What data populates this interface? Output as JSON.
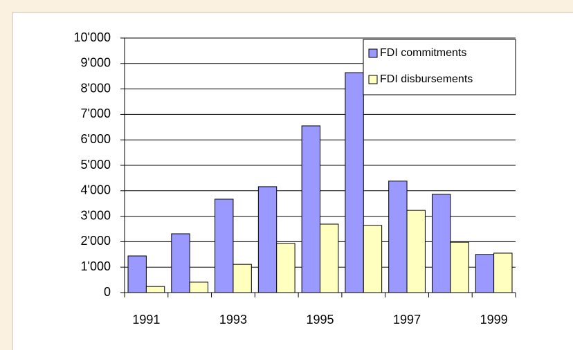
{
  "chart_data": {
    "type": "bar",
    "categories": [
      "1991",
      null,
      "1993",
      null,
      "1995",
      null,
      "1997",
      null,
      "1999"
    ],
    "series": [
      {
        "name": "FDI commitments",
        "color": "#9999ff",
        "values": [
          1440,
          2310,
          3670,
          4160,
          6550,
          8640,
          4380,
          3860,
          1500
        ]
      },
      {
        "name": "FDI disbursements",
        "color": "#ffffc0",
        "values": [
          240,
          410,
          1110,
          1930,
          2690,
          2640,
          3230,
          1980,
          1550
        ]
      }
    ],
    "ylim": [
      0,
      10000
    ],
    "yticks": [
      0,
      {
        "value": 1000,
        "label": "1'000"
      },
      {
        "value": 2000,
        "label": "2'000"
      },
      {
        "value": 3000,
        "label": "3'000"
      },
      {
        "value": 4000,
        "label": "4'000"
      },
      {
        "value": 5000,
        "label": "5'000"
      },
      {
        "value": 6000,
        "label": "6'000"
      },
      {
        "value": 7000,
        "label": "7'000"
      },
      {
        "value": 8000,
        "label": "8'000"
      },
      {
        "value": 9000,
        "label": "9'000"
      },
      {
        "value": 10000,
        "label": "10'000"
      }
    ],
    "grid": true,
    "legend": "upper right"
  }
}
